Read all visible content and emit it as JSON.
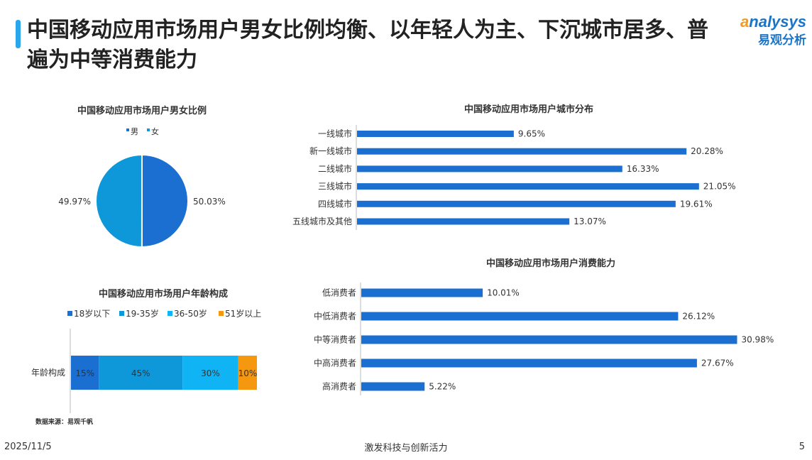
{
  "header": {
    "title": "中国移动应用市场用户男女比例均衡、以年轻人为主、下沉城市居多、普遍为中等消费能力",
    "logo_en_mark": "a",
    "logo_en_rest": "nalysys",
    "logo_cn": "易观分析"
  },
  "colors": {
    "blue_dark": "#1a6fd0",
    "blue_mid": "#0e97d9",
    "blue_light": "#10b4f5",
    "orange": "#f5980f",
    "bar": "#1a6fd0"
  },
  "chart_data": [
    {
      "id": "gender",
      "type": "pie",
      "title": "中国移动应用市场用户男女比例",
      "legend": [
        "男",
        "女"
      ],
      "slices": [
        {
          "label": "男",
          "value": 50.03,
          "display": "50.03%"
        },
        {
          "label": "女",
          "value": 49.97,
          "display": "49.97%"
        }
      ]
    },
    {
      "id": "age",
      "type": "bar",
      "stacked": true,
      "orientation": "horizontal",
      "title": "中国移动应用市场用户年龄构成",
      "categories": [
        "年龄构成"
      ],
      "series": [
        {
          "name": "18岁以下",
          "values": [
            15
          ],
          "display": "15%"
        },
        {
          "name": "19-35岁",
          "values": [
            45
          ],
          "display": "45%"
        },
        {
          "name": "36-50岁",
          "values": [
            30
          ],
          "display": "30%"
        },
        {
          "name": "51岁以上",
          "values": [
            10
          ],
          "display": "10%"
        }
      ],
      "xlim": [
        0,
        100
      ]
    },
    {
      "id": "city",
      "type": "bar",
      "orientation": "horizontal",
      "title": "中国移动应用市场用户城市分布",
      "categories": [
        "一线城市",
        "新一线城市",
        "二线城市",
        "三线城市",
        "四线城市",
        "五线城市及其他"
      ],
      "values": [
        9.65,
        20.28,
        16.33,
        21.05,
        19.61,
        13.07
      ],
      "labels": [
        "9.65%",
        "20.28%",
        "16.33%",
        "21.05%",
        "19.61%",
        "13.07%"
      ],
      "xlim": [
        0,
        22.5
      ]
    },
    {
      "id": "consume",
      "type": "bar",
      "orientation": "horizontal",
      "title": "中国移动应用市场用户消费能力",
      "categories": [
        "低消费者",
        "中低消费者",
        "中等消费者",
        "中高消费者",
        "高消费者"
      ],
      "values": [
        10.01,
        26.12,
        30.98,
        27.67,
        5.22
      ],
      "labels": [
        "10.01%",
        "26.12%",
        "30.98%",
        "27.67%",
        "5.22%"
      ],
      "xlim": [
        0,
        33.0
      ]
    }
  ],
  "source": "数据来源：易观千帆",
  "footer": {
    "date": "2025/11/5",
    "slogan": "激发科技与创新活力",
    "page": "5"
  }
}
